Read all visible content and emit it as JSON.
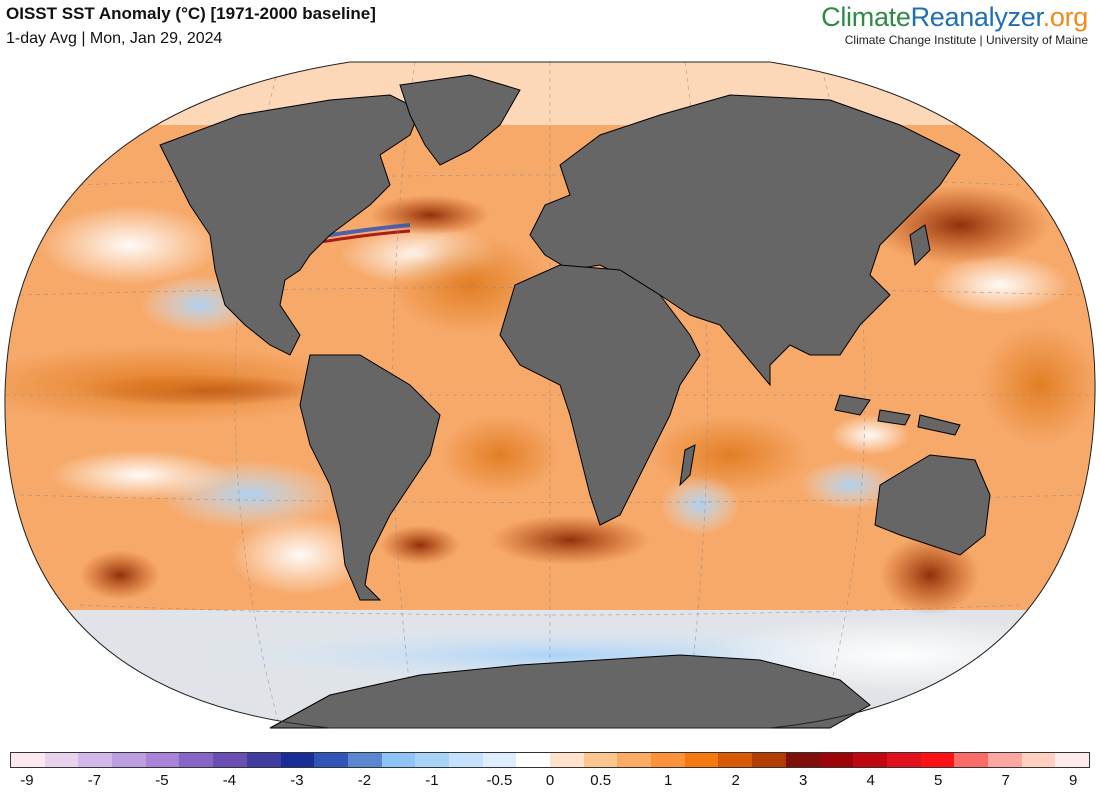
{
  "header": {
    "title": "OISST SST Anomaly (°C) [1971-2000 baseline]",
    "subtitle": "1-day Avg | Mon, Jan 29, 2024"
  },
  "brand": {
    "name_part1": "Climate",
    "name_part2": "Reanalyzer",
    "name_part3": ".org",
    "tagline": "Climate Change Institute | University of Maine"
  },
  "map": {
    "projection": "Winkel Tripel",
    "ocean_base_color": "#f7a96a",
    "land_color": "#666666"
  },
  "colorbar": {
    "colors": [
      "#fde8f0",
      "#e8d2ee",
      "#d2b8e8",
      "#bd9ee0",
      "#a784d8",
      "#8766c6",
      "#6a4eb4",
      "#3f3da0",
      "#172c94",
      "#2f56b6",
      "#5b86d0",
      "#8ec3f5",
      "#a9d2f7",
      "#c5e1fb",
      "#dcedfd",
      "#ffffff",
      "#fde3cc",
      "#fcc48e",
      "#fbab64",
      "#f99238",
      "#f47a10",
      "#d65a06",
      "#b13d02",
      "#7d0e0a",
      "#9b0408",
      "#bf080f",
      "#e1111b",
      "#fb1216",
      "#fb6c68",
      "#fca8a0",
      "#fdd0c2",
      "#fdeceb"
    ],
    "tick_labels": [
      "-9",
      "-7",
      "-5",
      "-4",
      "-3",
      "-2",
      "-1",
      "-0.5",
      "0",
      "0.5",
      "1",
      "2",
      "3",
      "4",
      "5",
      "7",
      "9"
    ],
    "tick_segments": [
      0.5,
      2.5,
      4.5,
      6.5,
      8.5,
      10.5,
      12.5,
      14.5,
      16,
      17.5,
      19.5,
      21.5,
      23.5,
      25.5,
      27.5,
      29.5,
      31.5
    ]
  }
}
